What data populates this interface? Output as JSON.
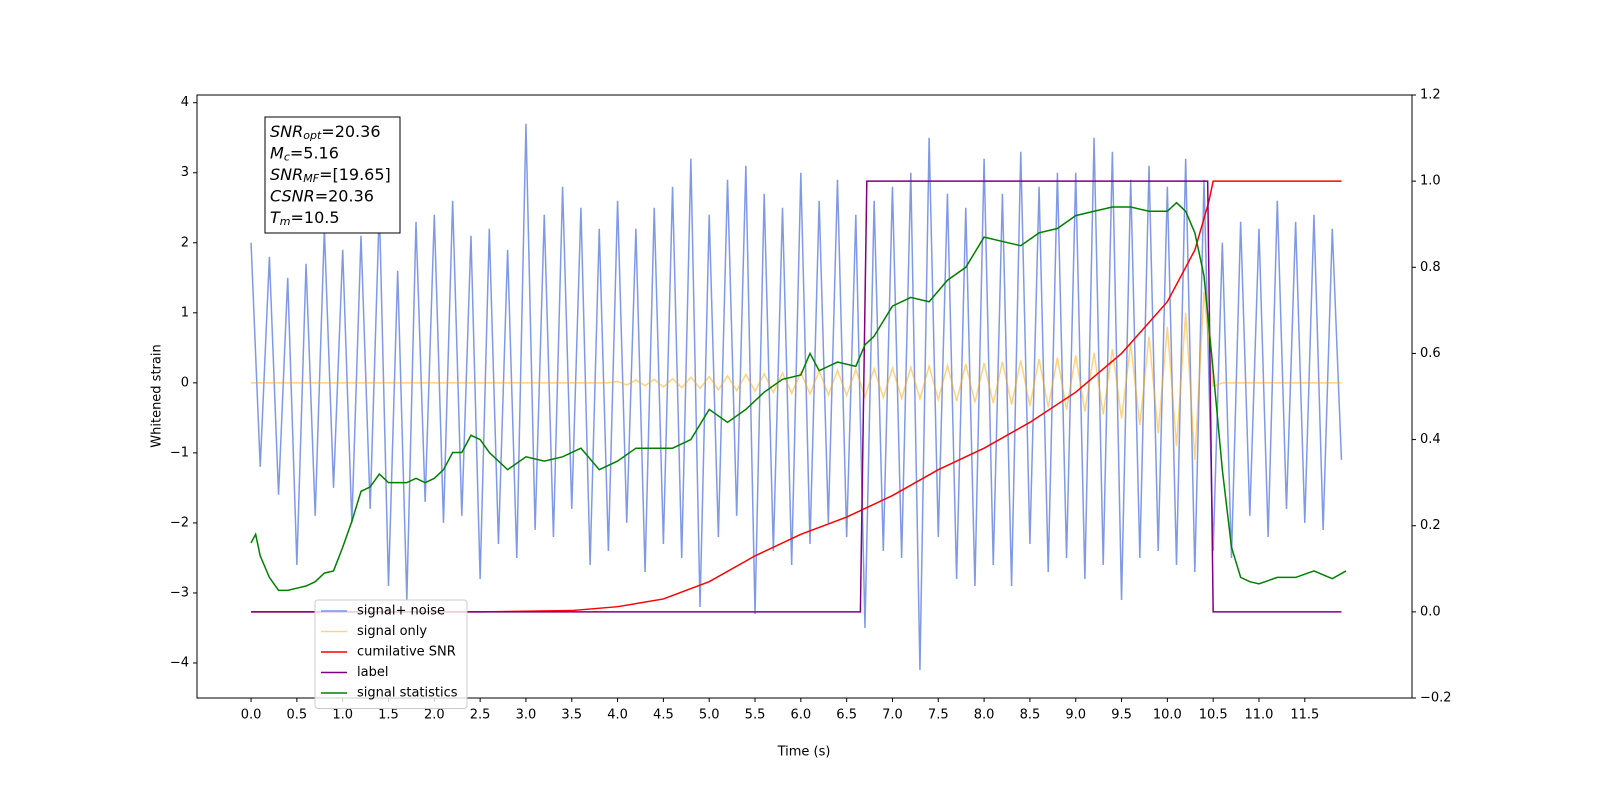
{
  "chart_data": {
    "type": "line",
    "xlabel": "Time (s)",
    "ylabel": "Whitened strain",
    "xlim": [
      -0.59,
      12.67
    ],
    "ylim": [
      -4.5,
      4.11
    ],
    "y2lim": [
      -0.2,
      1.2
    ],
    "xticks": [
      {
        "value": 0,
        "label": "0.0"
      },
      0.5,
      {
        "value": 1,
        "label": "1.0"
      },
      1.5,
      {
        "value": 2,
        "label": "2.0"
      },
      2.5,
      {
        "value": 3,
        "label": "3.0"
      },
      3.5,
      {
        "value": 4,
        "label": "4.0"
      },
      4.5,
      {
        "value": 5,
        "label": "5.0"
      },
      5.5,
      {
        "value": 6,
        "label": "6.0"
      },
      6.5,
      {
        "value": 7,
        "label": "7.0"
      },
      7.5,
      {
        "value": 8,
        "label": "8.0"
      },
      8.5,
      {
        "value": 9,
        "label": "9.0"
      },
      9.5,
      {
        "value": 10,
        "label": "10.0"
      },
      10.5,
      {
        "value": 11,
        "label": "11.0"
      },
      11.5
    ],
    "yticks": [
      {
        "value": -4,
        "label": "−4"
      },
      {
        "value": -3,
        "label": "−3"
      },
      {
        "value": -2,
        "label": "−2"
      },
      {
        "value": -1,
        "label": "−1"
      },
      0,
      1,
      2,
      3,
      4
    ],
    "y2ticks": [
      {
        "value": -0.2,
        "label": "−0.2"
      },
      {
        "value": 0,
        "label": "0.0"
      },
      0.2,
      0.4,
      0.6,
      0.8,
      {
        "value": 1,
        "label": "1.0"
      },
      1.2
    ],
    "legend": "lower left",
    "annotations": [
      {
        "symbol": "SNR",
        "subscript": "opt",
        "text": "=20.36"
      },
      {
        "symbol": "M",
        "subscript": "c",
        "text": "=5.16"
      },
      {
        "symbol": "SNR",
        "subscript": "MF",
        "text": "=[19.65]"
      },
      {
        "symbol": "CSNR",
        "text": "=20.36"
      },
      {
        "symbol": "T",
        "subscript": "m",
        "text": "=10.5"
      }
    ],
    "x": [
      0,
      0.1,
      0.2,
      0.3,
      0.4,
      0.5,
      0.6,
      0.7,
      0.8,
      0.9,
      1,
      1.1,
      1.2,
      1.3,
      1.4,
      1.5,
      1.6,
      1.7,
      1.8,
      1.9,
      2,
      2.1,
      2.2,
      2.3,
      2.4,
      2.5,
      2.6,
      2.7,
      2.8,
      2.9,
      3,
      3.1,
      3.2,
      3.3,
      3.4,
      3.5,
      3.6,
      3.7,
      3.8,
      3.9,
      4,
      4.1,
      4.2,
      4.3,
      4.4,
      4.5,
      4.6,
      4.7,
      4.8,
      4.9,
      5,
      5.1,
      5.2,
      5.3,
      5.4,
      5.5,
      5.6,
      5.7,
      5.8,
      5.9,
      6,
      6.1,
      6.2,
      6.3,
      6.4,
      6.5,
      6.6,
      6.7,
      6.8,
      6.9,
      7,
      7.1,
      7.2,
      7.3,
      7.4,
      7.5,
      7.6,
      7.7,
      7.8,
      7.9,
      8,
      8.1,
      8.2,
      8.3,
      8.4,
      8.5,
      8.6,
      8.7,
      8.8,
      8.9,
      9,
      9.1,
      9.2,
      9.3,
      9.4,
      9.5,
      9.6,
      9.7,
      9.8,
      9.9,
      10,
      10.1,
      10.2,
      10.3,
      10.4,
      10.5,
      10.6,
      10.7,
      10.8,
      10.9,
      11,
      11.1,
      11.2,
      11.3,
      11.4,
      11.5,
      11.6,
      11.7,
      11.8,
      11.9
    ],
    "series": [
      {
        "name": "signal+ noise",
        "color": "#7893e6",
        "values": [
          2.0,
          -1.2,
          1.8,
          -1.6,
          1.5,
          -2.6,
          1.7,
          -1.9,
          2.2,
          -1.5,
          1.9,
          -2.0,
          2.1,
          -1.8,
          2.5,
          -2.9,
          1.6,
          -3.1,
          2.3,
          -1.7,
          2.4,
          -2.0,
          2.6,
          -1.9,
          2.1,
          -2.8,
          2.2,
          -2.3,
          1.9,
          -2.5,
          3.7,
          -2.1,
          2.4,
          -2.2,
          2.8,
          -1.8,
          2.5,
          -2.6,
          2.2,
          -2.4,
          2.6,
          -2.0,
          2.2,
          -2.7,
          2.5,
          -2.3,
          2.8,
          -2.5,
          3.2,
          -3.2,
          2.4,
          -2.2,
          2.9,
          -1.9,
          3.1,
          -3.3,
          2.7,
          -2.4,
          2.5,
          -2.6,
          3.0,
          -2.3,
          2.6,
          -2.0,
          2.9,
          -2.2,
          2.4,
          -3.5,
          2.6,
          -2.4,
          2.8,
          -2.5,
          3.0,
          -4.1,
          3.5,
          -2.2,
          2.7,
          -2.8,
          2.5,
          -2.9,
          3.2,
          -2.6,
          2.7,
          -2.9,
          3.3,
          -2.3,
          2.8,
          -2.7,
          3.0,
          -2.5,
          3.0,
          -2.8,
          3.5,
          -2.6,
          3.3,
          -3.1,
          2.9,
          -2.5,
          3.1,
          -2.4,
          2.8,
          -2.6,
          3.2,
          -2.7,
          2.9,
          -2.4,
          2.0,
          -2.5,
          2.3,
          -1.9,
          2.2,
          -2.2,
          2.6,
          -1.8,
          2.3,
          -2.0,
          2.4,
          -2.1,
          2.2,
          -1.1
        ]
      },
      {
        "name": "signal only",
        "color": "#ffa500",
        "values": [
          0,
          0,
          0,
          0,
          0,
          0,
          0,
          0,
          0,
          0,
          0,
          0,
          0,
          0,
          0,
          0,
          0,
          0,
          0,
          0,
          0,
          0,
          0,
          0,
          0,
          0,
          0,
          0,
          0,
          0,
          0,
          0,
          0,
          0,
          0,
          0,
          0,
          0,
          0,
          0,
          0.02,
          -0.03,
          0.04,
          -0.04,
          0.05,
          -0.06,
          0.06,
          -0.07,
          0.08,
          -0.08,
          0.09,
          -0.1,
          0.1,
          -0.11,
          0.12,
          -0.12,
          0.13,
          -0.14,
          0.14,
          -0.15,
          0.15,
          -0.16,
          0.17,
          -0.17,
          0.18,
          -0.18,
          0.19,
          -0.2,
          0.2,
          -0.21,
          0.21,
          -0.22,
          0.22,
          -0.23,
          0.24,
          -0.24,
          0.25,
          -0.26,
          0.27,
          -0.28,
          0.28,
          -0.29,
          0.3,
          -0.31,
          0.32,
          -0.33,
          0.34,
          -0.35,
          0.36,
          -0.38,
          0.39,
          -0.41,
          0.43,
          -0.45,
          0.48,
          -0.51,
          0.55,
          -0.6,
          0.66,
          -0.72,
          0.8,
          -0.9,
          1.0,
          -1.1,
          1.3,
          -0.05,
          0,
          0,
          0,
          0,
          0,
          0,
          0,
          0,
          0,
          0,
          0,
          0,
          0,
          0
        ]
      },
      {
        "name": "cumilative SNR",
        "color": "#ff0000",
        "axis": "y2",
        "x": [
          0,
          2.5,
          3.5,
          4,
          4.5,
          5,
          5.5,
          6,
          6.5,
          7,
          7.5,
          8,
          8.5,
          9,
          9.5,
          10,
          10.3,
          10.45,
          10.5,
          11.9
        ],
        "values": [
          0,
          0,
          0.003,
          0.012,
          0.03,
          0.07,
          0.13,
          0.18,
          0.22,
          0.27,
          0.33,
          0.38,
          0.44,
          0.51,
          0.6,
          0.72,
          0.84,
          0.95,
          1,
          1
        ]
      },
      {
        "name": "label",
        "color": "#800080",
        "axis": "y2",
        "x": [
          0,
          6.65,
          6.72,
          10.44,
          10.5,
          11.9
        ],
        "values": [
          0,
          0,
          1,
          1,
          0,
          0
        ]
      },
      {
        "name": "signal statistics",
        "color": "#008000",
        "axis": "y2",
        "x": [
          0,
          0.05,
          0.1,
          0.2,
          0.3,
          0.4,
          0.5,
          0.6,
          0.7,
          0.8,
          0.9,
          1,
          1.1,
          1.2,
          1.3,
          1.4,
          1.5,
          1.6,
          1.7,
          1.8,
          1.9,
          2,
          2.1,
          2.2,
          2.3,
          2.4,
          2.5,
          2.6,
          2.8,
          3,
          3.2,
          3.4,
          3.6,
          3.8,
          4,
          4.2,
          4.4,
          4.6,
          4.8,
          5,
          5.2,
          5.4,
          5.6,
          5.8,
          6,
          6.1,
          6.2,
          6.4,
          6.6,
          6.7,
          6.8,
          7,
          7.2,
          7.4,
          7.6,
          7.8,
          8,
          8.2,
          8.4,
          8.6,
          8.8,
          9,
          9.2,
          9.4,
          9.6,
          9.8,
          10,
          10.1,
          10.2,
          10.3,
          10.4,
          10.5,
          10.6,
          10.7,
          10.8,
          10.9,
          11,
          11.2,
          11.4,
          11.6,
          11.8,
          11.95
        ],
        "values": [
          0.16,
          0.18,
          0.13,
          0.08,
          0.05,
          0.05,
          0.055,
          0.06,
          0.07,
          0.09,
          0.095,
          0.15,
          0.21,
          0.28,
          0.29,
          0.32,
          0.3,
          0.3,
          0.3,
          0.31,
          0.3,
          0.31,
          0.33,
          0.37,
          0.37,
          0.41,
          0.4,
          0.37,
          0.33,
          0.36,
          0.35,
          0.36,
          0.38,
          0.33,
          0.35,
          0.38,
          0.38,
          0.38,
          0.4,
          0.47,
          0.44,
          0.47,
          0.51,
          0.54,
          0.55,
          0.6,
          0.56,
          0.58,
          0.57,
          0.62,
          0.64,
          0.71,
          0.73,
          0.72,
          0.77,
          0.8,
          0.87,
          0.86,
          0.85,
          0.88,
          0.89,
          0.92,
          0.93,
          0.94,
          0.94,
          0.93,
          0.93,
          0.95,
          0.93,
          0.88,
          0.78,
          0.56,
          0.33,
          0.15,
          0.08,
          0.07,
          0.065,
          0.08,
          0.08,
          0.095,
          0.077,
          0.095
        ]
      }
    ]
  }
}
